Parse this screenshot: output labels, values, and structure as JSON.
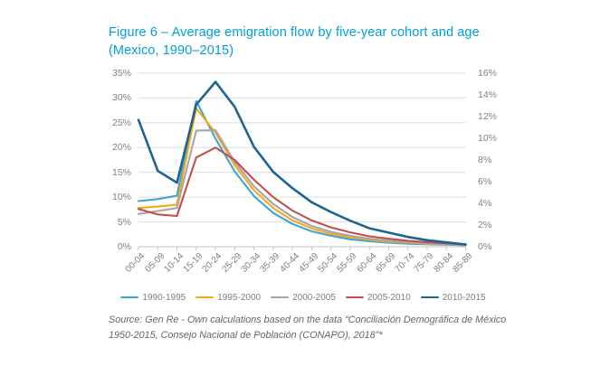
{
  "figure": {
    "title_line1": "Figure 6 – Average emigration flow by five-year cohort and age",
    "title_line2": "(Mexico, 1990–2015)",
    "title_color": "#009FDB",
    "source_line1": "Source: Gen Re - Own calculations based on the data “Conciliación Demográfica de México",
    "source_line2": "1950-2015, Consejo Nacional de Población (CONAPO), 2018”*"
  },
  "chart_data": {
    "type": "line",
    "title": "Average emigration flow by five-year cohort and age (Mexico, 1990–2015)",
    "xlabel": "",
    "ylabel": "",
    "grid": true,
    "legend_position": "bottom",
    "categories": [
      "00-04",
      "05-09",
      "10-14",
      "15-19",
      "20-24",
      "25-29",
      "30-34",
      "35-39",
      "40-44",
      "45-49",
      "50-54",
      "55-59",
      "60-64",
      "65-69",
      "70-74",
      "75-79",
      "80-84",
      "85-89"
    ],
    "left_axis": {
      "min": 0,
      "max": 35,
      "step": 5,
      "unit": "%"
    },
    "right_axis": {
      "min": 0,
      "max": 16,
      "step": 2,
      "unit": "%"
    },
    "colors": {
      "grid": "#DCDCDC",
      "axis": "#C2C2C2",
      "tick_text": "#808080"
    },
    "series": [
      {
        "name": "1990-1995",
        "color": "#3BA5D8",
        "axis": "left",
        "values": [
          9.2,
          9.6,
          10.3,
          29.4,
          21.8,
          15.2,
          10.2,
          6.8,
          4.6,
          3.1,
          2.2,
          1.5,
          1.1,
          0.8,
          0.6,
          0.5,
          0.4,
          0.3
        ]
      },
      {
        "name": "1995-2000",
        "color": "#FAA61A",
        "axis": "left",
        "values": [
          7.8,
          8.1,
          8.5,
          27.9,
          23.0,
          16.4,
          11.4,
          7.8,
          5.3,
          3.7,
          2.6,
          1.9,
          1.4,
          1.0,
          0.8,
          0.6,
          0.5,
          0.4
        ]
      },
      {
        "name": "2000-2005",
        "color": "#A6A6A6",
        "axis": "left",
        "values": [
          6.6,
          7.2,
          7.8,
          23.4,
          23.5,
          17.1,
          12.2,
          8.6,
          6.0,
          4.2,
          3.0,
          2.2,
          1.6,
          1.2,
          0.9,
          0.7,
          0.5,
          0.4
        ]
      },
      {
        "name": "2005-2010",
        "color": "#C0504D",
        "axis": "left",
        "values": [
          7.6,
          6.5,
          6.2,
          18.0,
          20.0,
          17.5,
          13.5,
          10.0,
          7.3,
          5.3,
          3.9,
          2.9,
          2.1,
          1.6,
          1.2,
          0.9,
          0.7,
          0.5
        ]
      },
      {
        "name": "2010-2015",
        "color": "#1F6391",
        "axis": "right",
        "values": [
          11.7,
          7.0,
          5.9,
          13.1,
          15.2,
          12.9,
          9.2,
          6.9,
          5.4,
          4.1,
          3.2,
          2.4,
          1.7,
          1.3,
          0.9,
          0.6,
          0.4,
          0.2
        ]
      }
    ]
  }
}
